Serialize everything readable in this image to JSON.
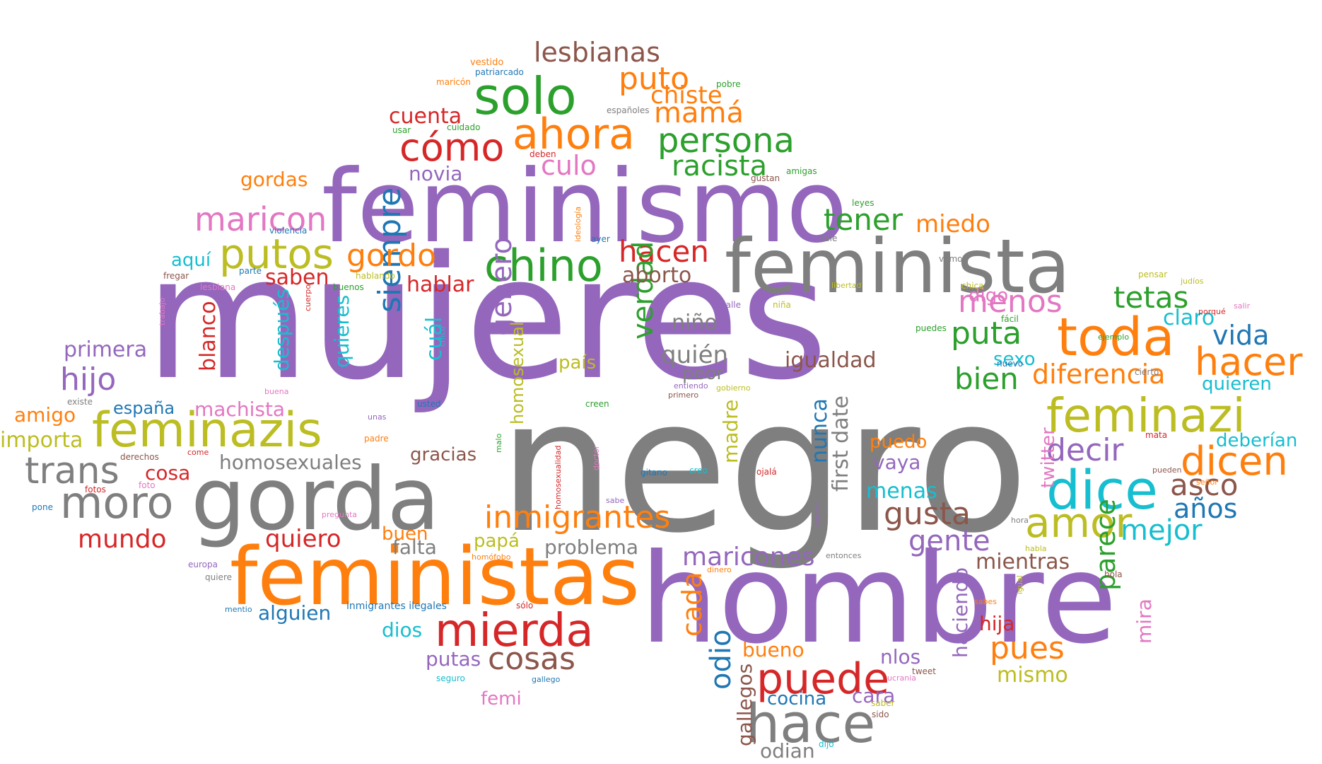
{
  "palette": {
    "purple": "#9467bd",
    "gray": "#7f7f7f",
    "orange": "#ff7f0e",
    "green": "#2ca02c",
    "red": "#d62728",
    "olive": "#bcbd22",
    "cyan": "#17becf",
    "pink": "#e377c2",
    "brown": "#8c564b",
    "blue": "#1f77b4"
  },
  "words": [
    {
      "text": "mujeres",
      "weight": 1.0,
      "color": "purple"
    },
    {
      "text": "negro",
      "weight": 0.95,
      "color": "gray"
    },
    {
      "text": "hombre",
      "weight": 0.82,
      "color": "purple"
    },
    {
      "text": "feminismo",
      "weight": 0.72,
      "color": "purple"
    },
    {
      "text": "gorda",
      "weight": 0.62,
      "color": "gray"
    },
    {
      "text": "feministas",
      "weight": 0.58,
      "color": "orange"
    },
    {
      "text": "feminista",
      "weight": 0.52,
      "color": "gray"
    },
    {
      "text": "hace",
      "weight": 0.4,
      "color": "gray"
    },
    {
      "text": "dice",
      "weight": 0.37,
      "color": "cyan"
    },
    {
      "text": "toda",
      "weight": 0.37,
      "color": "orange"
    },
    {
      "text": "feminazi",
      "weight": 0.36,
      "color": "olive"
    },
    {
      "text": "solo",
      "weight": 0.36,
      "color": "green"
    },
    {
      "text": "feminazis",
      "weight": 0.35,
      "color": "olive"
    },
    {
      "text": "mierda",
      "weight": 0.33,
      "color": "red"
    },
    {
      "text": "chino",
      "weight": 0.32,
      "color": "green"
    },
    {
      "text": "moro",
      "weight": 0.32,
      "color": "gray"
    },
    {
      "text": "ahora",
      "weight": 0.31,
      "color": "orange"
    },
    {
      "text": "puede",
      "weight": 0.31,
      "color": "red"
    },
    {
      "text": "amor",
      "weight": 0.3,
      "color": "olive"
    },
    {
      "text": "putos",
      "weight": 0.3,
      "color": "olive"
    },
    {
      "text": "dicen",
      "weight": 0.3,
      "color": "orange"
    },
    {
      "text": "trans",
      "weight": 0.28,
      "color": "gray"
    },
    {
      "text": "hacer",
      "weight": 0.28,
      "color": "orange"
    },
    {
      "text": "cómo",
      "weight": 0.27,
      "color": "red"
    },
    {
      "text": "persona",
      "weight": 0.25,
      "color": "green"
    },
    {
      "text": "inmigrantes",
      "weight": 0.24,
      "color": "orange"
    },
    {
      "text": "siempre",
      "weight": 0.24,
      "color": "blue"
    },
    {
      "text": "maricon",
      "weight": 0.24,
      "color": "pink"
    },
    {
      "text": "gordo",
      "weight": 0.24,
      "color": "orange"
    },
    {
      "text": "cosas",
      "weight": 0.23,
      "color": "brown"
    },
    {
      "text": "puto",
      "weight": 0.23,
      "color": "orange"
    },
    {
      "text": "decir",
      "weight": 0.23,
      "color": "purple"
    },
    {
      "text": "gusta",
      "weight": 0.23,
      "color": "brown"
    },
    {
      "text": "pues",
      "weight": 0.23,
      "color": "orange"
    },
    {
      "text": "hijo",
      "weight": 0.23,
      "color": "purple"
    },
    {
      "text": "diferencia",
      "weight": 0.22,
      "color": "orange"
    },
    {
      "text": "tener",
      "weight": 0.22,
      "color": "green"
    },
    {
      "text": "hacen",
      "weight": 0.22,
      "color": "red"
    },
    {
      "text": "racista",
      "weight": 0.22,
      "color": "green"
    },
    {
      "text": "menos",
      "weight": 0.22,
      "color": "pink"
    },
    {
      "text": "tetas",
      "weight": 0.22,
      "color": "green"
    },
    {
      "text": "bien",
      "weight": 0.22,
      "color": "green"
    },
    {
      "text": "puta",
      "weight": 0.22,
      "color": "green"
    },
    {
      "text": "lesbianas",
      "weight": 0.21,
      "color": "brown"
    },
    {
      "text": "mamá",
      "weight": 0.21,
      "color": "orange"
    },
    {
      "text": "mejor",
      "weight": 0.21,
      "color": "cyan"
    },
    {
      "text": "gente",
      "weight": 0.21,
      "color": "purple"
    },
    {
      "text": "asco",
      "weight": 0.21,
      "color": "brown"
    },
    {
      "text": "verdad",
      "weight": 0.21,
      "color": "green"
    },
    {
      "text": "género",
      "weight": 0.21,
      "color": "purple"
    },
    {
      "text": "culo",
      "weight": 0.21,
      "color": "pink"
    },
    {
      "text": "maricones",
      "weight": 0.2,
      "color": "purple"
    },
    {
      "text": "cada",
      "weight": 0.2,
      "color": "orange"
    },
    {
      "text": "odio",
      "weight": 0.2,
      "color": "blue"
    },
    {
      "text": "parece",
      "weight": 0.2,
      "color": "green"
    },
    {
      "text": "vida",
      "weight": 0.2,
      "color": "blue"
    },
    {
      "text": "años",
      "weight": 0.2,
      "color": "blue"
    },
    {
      "text": "chiste",
      "weight": 0.19,
      "color": "orange"
    },
    {
      "text": "quién",
      "weight": 0.19,
      "color": "gray"
    },
    {
      "text": "miedo",
      "weight": 0.19,
      "color": "orange"
    },
    {
      "text": "mundo",
      "weight": 0.19,
      "color": "red"
    },
    {
      "text": "quiero",
      "weight": 0.18,
      "color": "red"
    },
    {
      "text": "cuál",
      "weight": 0.18,
      "color": "cyan"
    },
    {
      "text": "claro",
      "weight": 0.17,
      "color": "cyan"
    },
    {
      "text": "cosa",
      "weight": 0.17,
      "color": "red"
    },
    {
      "text": "cuenta",
      "weight": 0.17,
      "color": "red"
    },
    {
      "text": "blanco",
      "weight": 0.17,
      "color": "red"
    },
    {
      "text": "mientras",
      "weight": 0.17,
      "color": "brown"
    },
    {
      "text": "hablar",
      "weight": 0.17,
      "color": "red"
    },
    {
      "text": "aborto",
      "weight": 0.17,
      "color": "brown"
    },
    {
      "text": "primera",
      "weight": 0.17,
      "color": "purple"
    },
    {
      "text": "mismo",
      "weight": 0.17,
      "color": "olive"
    },
    {
      "text": "homosexuales",
      "weight": 0.17,
      "color": "gray"
    },
    {
      "text": "niño",
      "weight": 0.17,
      "color": "gray"
    },
    {
      "text": "saben",
      "weight": 0.17,
      "color": "red"
    },
    {
      "text": "igualdad",
      "weight": 0.17,
      "color": "brown"
    },
    {
      "text": "menas",
      "weight": 0.17,
      "color": "cyan"
    },
    {
      "text": "importa",
      "weight": 0.17,
      "color": "olive"
    },
    {
      "text": "quieres",
      "weight": 0.17,
      "color": "cyan"
    },
    {
      "text": "después",
      "weight": 0.16,
      "color": "cyan"
    },
    {
      "text": "first date",
      "weight": 0.16,
      "color": "gray"
    },
    {
      "text": "nunca",
      "weight": 0.16,
      "color": "blue"
    },
    {
      "text": "gordas",
      "weight": 0.16,
      "color": "orange"
    },
    {
      "text": "falta",
      "weight": 0.16,
      "color": "gray"
    },
    {
      "text": "problema",
      "weight": 0.16,
      "color": "gray"
    },
    {
      "text": "novia",
      "weight": 0.16,
      "color": "purple"
    },
    {
      "text": "machista",
      "weight": 0.16,
      "color": "pink"
    },
    {
      "text": "madre",
      "weight": 0.16,
      "color": "olive"
    },
    {
      "text": "gallegos",
      "weight": 0.16,
      "color": "brown"
    },
    {
      "text": "haciendo",
      "weight": 0.16,
      "color": "purple"
    },
    {
      "text": "amigo",
      "weight": 0.16,
      "color": "orange"
    },
    {
      "text": "alguien",
      "weight": 0.16,
      "color": "blue"
    },
    {
      "text": "gracias",
      "weight": 0.16,
      "color": "brown"
    },
    {
      "text": "dios",
      "weight": 0.16,
      "color": "cyan"
    },
    {
      "text": "putas",
      "weight": 0.16,
      "color": "purple"
    },
    {
      "text": "bueno",
      "weight": 0.16,
      "color": "orange"
    },
    {
      "text": "cocina",
      "weight": 0.16,
      "color": "blue"
    },
    {
      "text": "odian",
      "weight": 0.16,
      "color": "gray"
    },
    {
      "text": "hija",
      "weight": 0.16,
      "color": "red"
    },
    {
      "text": "vaya",
      "weight": 0.16,
      "color": "purple"
    },
    {
      "text": "nlos",
      "weight": 0.16,
      "color": "purple"
    },
    {
      "text": "cara",
      "weight": 0.16,
      "color": "purple"
    },
    {
      "text": "mira",
      "weight": 0.16,
      "color": "pink"
    },
    {
      "text": "digo",
      "weight": 0.16,
      "color": "pink"
    },
    {
      "text": "quieren",
      "weight": 0.16,
      "color": "cyan"
    },
    {
      "text": "deberían",
      "weight": 0.16,
      "color": "cyan"
    },
    {
      "text": "twitter",
      "weight": 0.16,
      "color": "pink"
    },
    {
      "text": "peor",
      "weight": 0.16,
      "color": "gray"
    },
    {
      "text": "país",
      "weight": 0.16,
      "color": "olive"
    },
    {
      "text": "aquí",
      "weight": 0.16,
      "color": "cyan"
    },
    {
      "text": "homosexual",
      "weight": 0.16,
      "color": "olive"
    },
    {
      "text": "buen",
      "weight": 0.16,
      "color": "orange"
    },
    {
      "text": "papá",
      "weight": 0.16,
      "color": "olive"
    },
    {
      "text": "femi",
      "weight": 0.16,
      "color": "pink"
    },
    {
      "text": "puedo",
      "weight": 0.16,
      "color": "orange"
    },
    {
      "text": "sexo",
      "weight": 0.16,
      "color": "cyan"
    },
    {
      "text": "españa",
      "weight": 0.15,
      "color": "blue"
    },
    {
      "text": "inmigrantes ilegales",
      "weight": 0.08,
      "color": "blue"
    },
    {
      "text": "vestido",
      "weight": 0.07,
      "color": "orange"
    },
    {
      "text": "patriarcado",
      "weight": 0.06,
      "color": "blue"
    },
    {
      "text": "maricón",
      "weight": 0.06,
      "color": "orange"
    },
    {
      "text": "españoles",
      "weight": 0.06,
      "color": "gray"
    },
    {
      "text": "cuidado",
      "weight": 0.06,
      "color": "green"
    },
    {
      "text": "usar",
      "weight": 0.06,
      "color": "green"
    },
    {
      "text": "deben",
      "weight": 0.06,
      "color": "red"
    },
    {
      "text": "pobre",
      "weight": 0.06,
      "color": "green"
    },
    {
      "text": "amigas",
      "weight": 0.06,
      "color": "green"
    },
    {
      "text": "gustan",
      "weight": 0.06,
      "color": "brown"
    },
    {
      "text": "leyes",
      "weight": 0.06,
      "color": "green"
    },
    {
      "text": "violencia",
      "weight": 0.06,
      "color": "blue"
    },
    {
      "text": "ideología",
      "weight": 0.06,
      "color": "orange"
    },
    {
      "text": "ayer",
      "weight": 0.06,
      "color": "blue"
    },
    {
      "text": "sale",
      "weight": 0.06,
      "color": "gray"
    },
    {
      "text": "fregar",
      "weight": 0.06,
      "color": "brown"
    },
    {
      "text": "parte",
      "weight": 0.06,
      "color": "blue"
    },
    {
      "text": "hablando",
      "weight": 0.06,
      "color": "olive"
    },
    {
      "text": "vamos",
      "weight": 0.06,
      "color": "gray"
    },
    {
      "text": "lesbiana",
      "weight": 0.06,
      "color": "pink"
    },
    {
      "text": "buenos",
      "weight": 0.06,
      "color": "green"
    },
    {
      "text": "cuerpo",
      "weight": 0.06,
      "color": "red"
    },
    {
      "text": "libertad",
      "weight": 0.06,
      "color": "olive"
    },
    {
      "text": "chica",
      "weight": 0.06,
      "color": "olive"
    },
    {
      "text": "pensar",
      "weight": 0.06,
      "color": "olive"
    },
    {
      "text": "judíos",
      "weight": 0.06,
      "color": "olive"
    },
    {
      "text": "trabajo",
      "weight": 0.06,
      "color": "pink"
    },
    {
      "text": "calle",
      "weight": 0.06,
      "color": "purple"
    },
    {
      "text": "salir",
      "weight": 0.06,
      "color": "pink"
    },
    {
      "text": "porqué",
      "weight": 0.06,
      "color": "red"
    },
    {
      "text": "chico",
      "weight": 0.06,
      "color": "cyan"
    },
    {
      "text": "niña",
      "weight": 0.06,
      "color": "olive"
    },
    {
      "text": "puedes",
      "weight": 0.06,
      "color": "green"
    },
    {
      "text": "fácil",
      "weight": 0.06,
      "color": "green"
    },
    {
      "text": "ejemplo",
      "weight": 0.06,
      "color": "green"
    },
    {
      "text": "nuevo",
      "weight": 0.06,
      "color": "blue"
    },
    {
      "text": "cierto",
      "weight": 0.06,
      "color": "gray"
    },
    {
      "text": "existe",
      "weight": 0.06,
      "color": "gray"
    },
    {
      "text": "buena",
      "weight": 0.06,
      "color": "pink"
    },
    {
      "text": "entiendo",
      "weight": 0.06,
      "color": "purple"
    },
    {
      "text": "gobierno",
      "weight": 0.06,
      "color": "olive"
    },
    {
      "text": "primero",
      "weight": 0.06,
      "color": "brown"
    },
    {
      "text": "creen",
      "weight": 0.06,
      "color": "green"
    },
    {
      "text": "usted",
      "weight": 0.06,
      "color": "blue"
    },
    {
      "text": "unas",
      "weight": 0.06,
      "color": "purple"
    },
    {
      "text": "padre",
      "weight": 0.06,
      "color": "orange"
    },
    {
      "text": "malo",
      "weight": 0.06,
      "color": "green"
    },
    {
      "text": "homosexualidad",
      "weight": 0.06,
      "color": "red"
    },
    {
      "text": "doctor",
      "weight": 0.06,
      "color": "pink"
    },
    {
      "text": "derechos",
      "weight": 0.06,
      "color": "brown"
    },
    {
      "text": "come",
      "weight": 0.06,
      "color": "red"
    },
    {
      "text": "fotos",
      "weight": 0.06,
      "color": "red"
    },
    {
      "text": "foto",
      "weight": 0.06,
      "color": "pink"
    },
    {
      "text": "pone",
      "weight": 0.06,
      "color": "blue"
    },
    {
      "text": "gitano",
      "weight": 0.06,
      "color": "blue"
    },
    {
      "text": "creo",
      "weight": 0.06,
      "color": "cyan"
    },
    {
      "text": "ojalá",
      "weight": 0.06,
      "color": "red"
    },
    {
      "text": "mata",
      "weight": 0.06,
      "color": "red"
    },
    {
      "text": "pueden",
      "weight": 0.06,
      "color": "brown"
    },
    {
      "text": "señor",
      "weight": 0.06,
      "color": "orange"
    },
    {
      "text": "pregunta",
      "weight": 0.06,
      "color": "pink"
    },
    {
      "text": "sabe",
      "weight": 0.06,
      "color": "purple"
    },
    {
      "text": "querer",
      "weight": 0.06,
      "color": "purple"
    },
    {
      "text": "hora",
      "weight": 0.06,
      "color": "gray"
    },
    {
      "text": "habla",
      "weight": 0.06,
      "color": "olive"
    },
    {
      "text": "europa",
      "weight": 0.06,
      "color": "purple"
    },
    {
      "text": "quiere",
      "weight": 0.06,
      "color": "gray"
    },
    {
      "text": "homófobo",
      "weight": 0.06,
      "color": "orange"
    },
    {
      "text": "entonces",
      "weight": 0.06,
      "color": "gray"
    },
    {
      "text": "dinero",
      "weight": 0.06,
      "color": "orange"
    },
    {
      "text": "igual",
      "weight": 0.06,
      "color": "olive"
    },
    {
      "text": "hola",
      "weight": 0.06,
      "color": "brown"
    },
    {
      "text": "mentio",
      "weight": 0.06,
      "color": "blue"
    },
    {
      "text": "sólo",
      "weight": 0.06,
      "color": "red"
    },
    {
      "text": "sabes",
      "weight": 0.06,
      "color": "orange"
    },
    {
      "text": "seguro",
      "weight": 0.06,
      "color": "cyan"
    },
    {
      "text": "gallego",
      "weight": 0.06,
      "color": "blue"
    },
    {
      "text": "ucrania",
      "weight": 0.06,
      "color": "pink"
    },
    {
      "text": "tweet",
      "weight": 0.06,
      "color": "brown"
    },
    {
      "text": "saber",
      "weight": 0.06,
      "color": "olive"
    },
    {
      "text": "sido",
      "weight": 0.06,
      "color": "brown"
    },
    {
      "text": "dijo",
      "weight": 0.06,
      "color": "cyan"
    }
  ]
}
